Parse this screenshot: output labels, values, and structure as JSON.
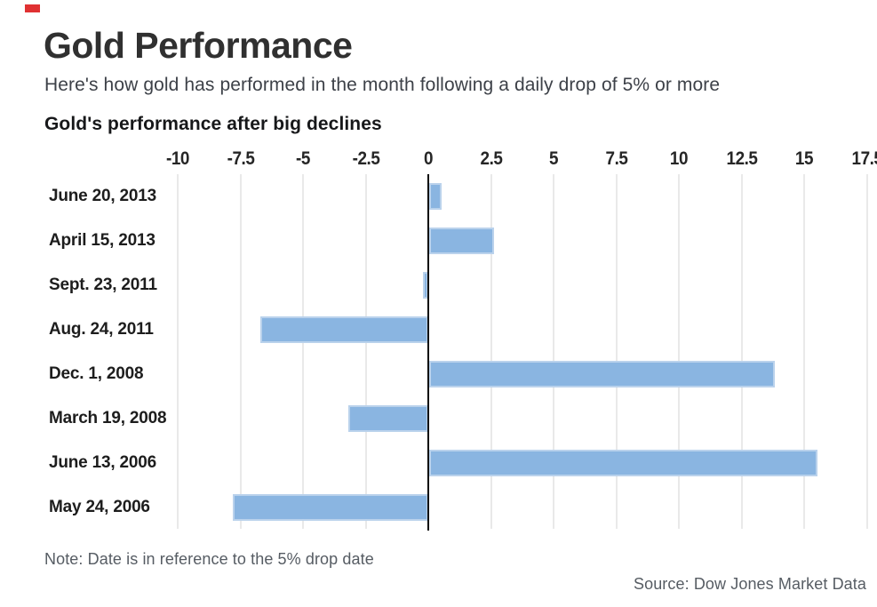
{
  "brand": {
    "mark_color": "#e03132"
  },
  "header": {
    "title": "Gold Performance",
    "subtitle": "Here's how gold has performed in the month following a daily drop of 5% or more"
  },
  "chart_data": {
    "type": "bar",
    "orientation": "horizontal",
    "title": "Gold's performance after big declines",
    "categories": [
      "June 20, 2013",
      "April 15, 2013",
      "Sept. 23, 2011",
      "Aug. 24, 2011",
      "Dec. 1, 2008",
      "March 19, 2008",
      "June 13, 2006",
      "May 24, 2006"
    ],
    "values": [
      0.5,
      2.6,
      -0.2,
      -6.7,
      13.8,
      -3.2,
      15.5,
      -7.8
    ],
    "x_ticks": [
      -10,
      -7.5,
      -5,
      -2.5,
      0,
      2.5,
      5,
      7.5,
      10,
      12.5,
      15,
      17.5
    ],
    "x_tick_labels": [
      "-10",
      "-7.5",
      "-5",
      "-2.5",
      "0",
      "2.5",
      "5",
      "7.5",
      "10",
      "12.5",
      "15",
      "17.5"
    ],
    "xlim": [
      -10.5,
      17.9
    ],
    "xlabel": "",
    "ylabel": "",
    "grid": "vertical gridlines on, horizontal off",
    "legend": "none",
    "bar_color": "#8ab5e1",
    "bar_border_color": "#bad2ec",
    "grid_color": "#e9e9e9",
    "zero_line_color": "#0a0a0a"
  },
  "footer": {
    "note": "Note: Date is in reference to the 5% drop date",
    "source": "Source: Dow Jones Market Data"
  }
}
